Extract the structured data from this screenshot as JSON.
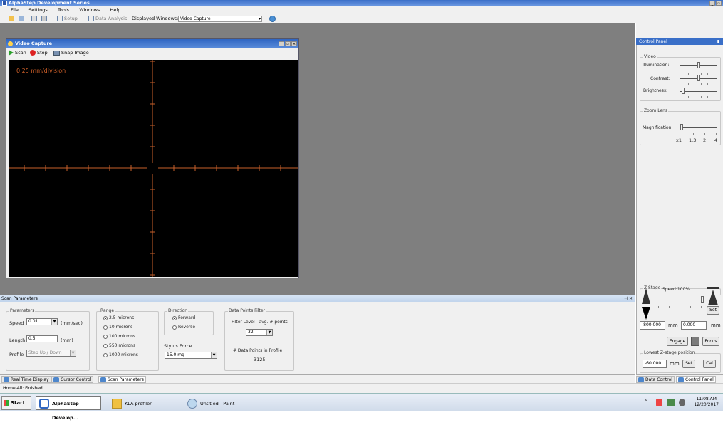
{
  "app": {
    "title": "AlphaStep Development Series",
    "min_glyph": "_",
    "max_glyph": "▫",
    "close_glyph": "×"
  },
  "menu": [
    "File",
    "Settings",
    "Tools",
    "Windows",
    "Help"
  ],
  "toolbar": {
    "setup": "Setup",
    "data_analysis": "Data Analysis",
    "displayed_windows_label": "Displayed Windows:",
    "displayed_windows_value": "Video Capture"
  },
  "video": {
    "title": "Video Capture",
    "scan": "Scan",
    "stop": "Stop",
    "snap": "Snap Image",
    "scale_text": "0.25 mm/division"
  },
  "control_panel": {
    "title": "Control Panel",
    "pin": "▮",
    "video_group": "Video",
    "illumination": "Illumination:",
    "contrast": "Contrast:",
    "brightness": "Brightness:",
    "illumination_level": 0.5,
    "contrast_level": 0.5,
    "brightness_level": 0.05,
    "zoom_group": "Zoom Lens",
    "magnification": "Magnification:",
    "magnification_level": 0.0,
    "zoom_marks": [
      "x1",
      "1.3",
      "2",
      "4"
    ]
  },
  "zstage": {
    "group": "Z Stage",
    "speed": "Speed:100%",
    "set": "Set",
    "pos1": "-800.000",
    "pos2": "0.000",
    "unit": "mm",
    "engage": "Engage",
    "focus": "Focus",
    "lowest_group": "Lowest Z-stage position",
    "lowest_value": "-60.000",
    "lowest_unit": "mm",
    "lowest_set": "Set",
    "cal": "Cal",
    "speed_level": 1.0
  },
  "scan_params": {
    "title": "Scan Parameters",
    "pin_close": "⊣ ✕",
    "parameters_group": "Parameters",
    "speed_label": "Speed",
    "speed_value": "0.01",
    "speed_unit": "(mm/sec)",
    "length_label": "Length",
    "length_value": "0.5",
    "length_unit": "(mm)",
    "profile_label": "Profile",
    "profile_value": "Step Up / Down",
    "range_group": "Range",
    "ranges": [
      "2.5 microns",
      "10 microns",
      "100 microns",
      "550 microns",
      "1000 microns"
    ],
    "range_selected": 0,
    "direction_group": "Direction",
    "forward": "Forward",
    "reverse": "Reverse",
    "stylus_label": "Stylus Force",
    "stylus_value": "15.0 mg",
    "filter_group": "Data Points Filter",
    "filter_label": "Filter Level - avg. # points",
    "filter_value": "32",
    "points_label": "# Data Points in Profile",
    "points_value": "3125"
  },
  "bottom_tabs": {
    "left": [
      "Real Time Display",
      "Cursor Control",
      "Scan Parameters"
    ],
    "right": [
      "Data Control",
      "Control Panel"
    ]
  },
  "status": "Home-All: Finished",
  "taskbar": {
    "start": "Start",
    "tasks": [
      "AlphaStep Develop...",
      "KLA profiler",
      "Untitled - Paint"
    ],
    "time": "11:08 AM",
    "date": "12/20/2017"
  },
  "colors": {
    "scale_text": "#d4622a",
    "crosshair": "#c8602a",
    "title_blue": "#2f66c2"
  }
}
